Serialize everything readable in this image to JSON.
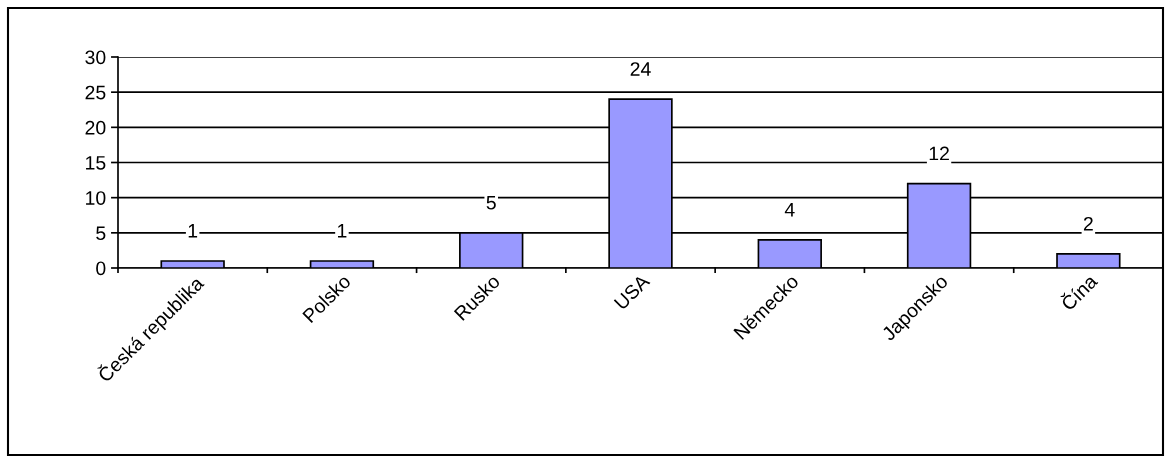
{
  "chart_data": {
    "type": "bar",
    "categories": [
      "Česká republika",
      "Polsko",
      "Rusko",
      "USA",
      "Německo",
      "Japonsko",
      "Čína"
    ],
    "values": [
      1,
      1,
      5,
      24,
      4,
      12,
      2
    ],
    "color": "#9999ff",
    "ylim": [
      0,
      30
    ],
    "yticks": [
      0,
      5,
      10,
      15,
      20,
      25,
      30
    ],
    "grid": "y",
    "data_labels": true,
    "legend": false
  }
}
